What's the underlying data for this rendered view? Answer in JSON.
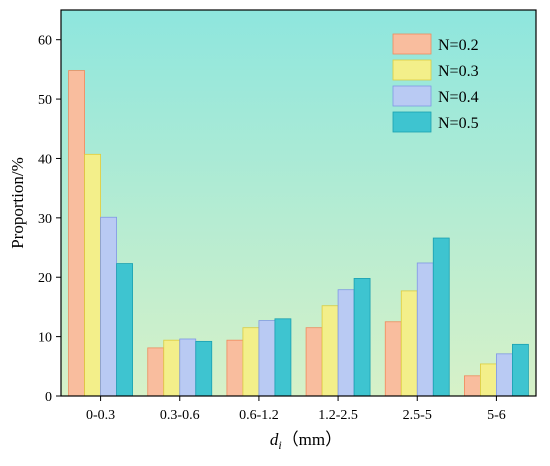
{
  "chart_data": {
    "type": "bar",
    "categories": [
      "0-0.3",
      "0.3-0.6",
      "0.6-1.2",
      "1.2-2.5",
      "2.5-5",
      "5-6"
    ],
    "series": [
      {
        "name": "N=0.2",
        "values": [
          54.8,
          8.1,
          9.4,
          11.5,
          12.5,
          3.4
        ],
        "color": "#f9bd9e",
        "edge": "#f08a5c"
      },
      {
        "name": "N=0.3",
        "values": [
          40.7,
          9.4,
          11.5,
          15.2,
          17.7,
          5.4
        ],
        "color": "#f3ef8a",
        "edge": "#dccc3e"
      },
      {
        "name": "N=0.4",
        "values": [
          30.1,
          9.6,
          12.7,
          17.9,
          22.4,
          7.1
        ],
        "color": "#b9caf3",
        "edge": "#7f98e4"
      },
      {
        "name": "N=0.5",
        "values": [
          22.3,
          9.2,
          13.0,
          19.8,
          26.6,
          8.7
        ],
        "color": "#3ec4d0",
        "edge": "#1aa0b0"
      }
    ],
    "xlabel": "d",
    "xlabel_sub": "i",
    "xlabel_unit": "（mm）",
    "ylabel": "Proportion/%",
    "ylim": [
      0,
      65
    ],
    "yticks": [
      "0",
      "10",
      "20",
      "30",
      "40",
      "50",
      "60"
    ],
    "legend_position": "top-right",
    "background_gradient": [
      "#8ee6de",
      "#d7f1c8"
    ]
  }
}
